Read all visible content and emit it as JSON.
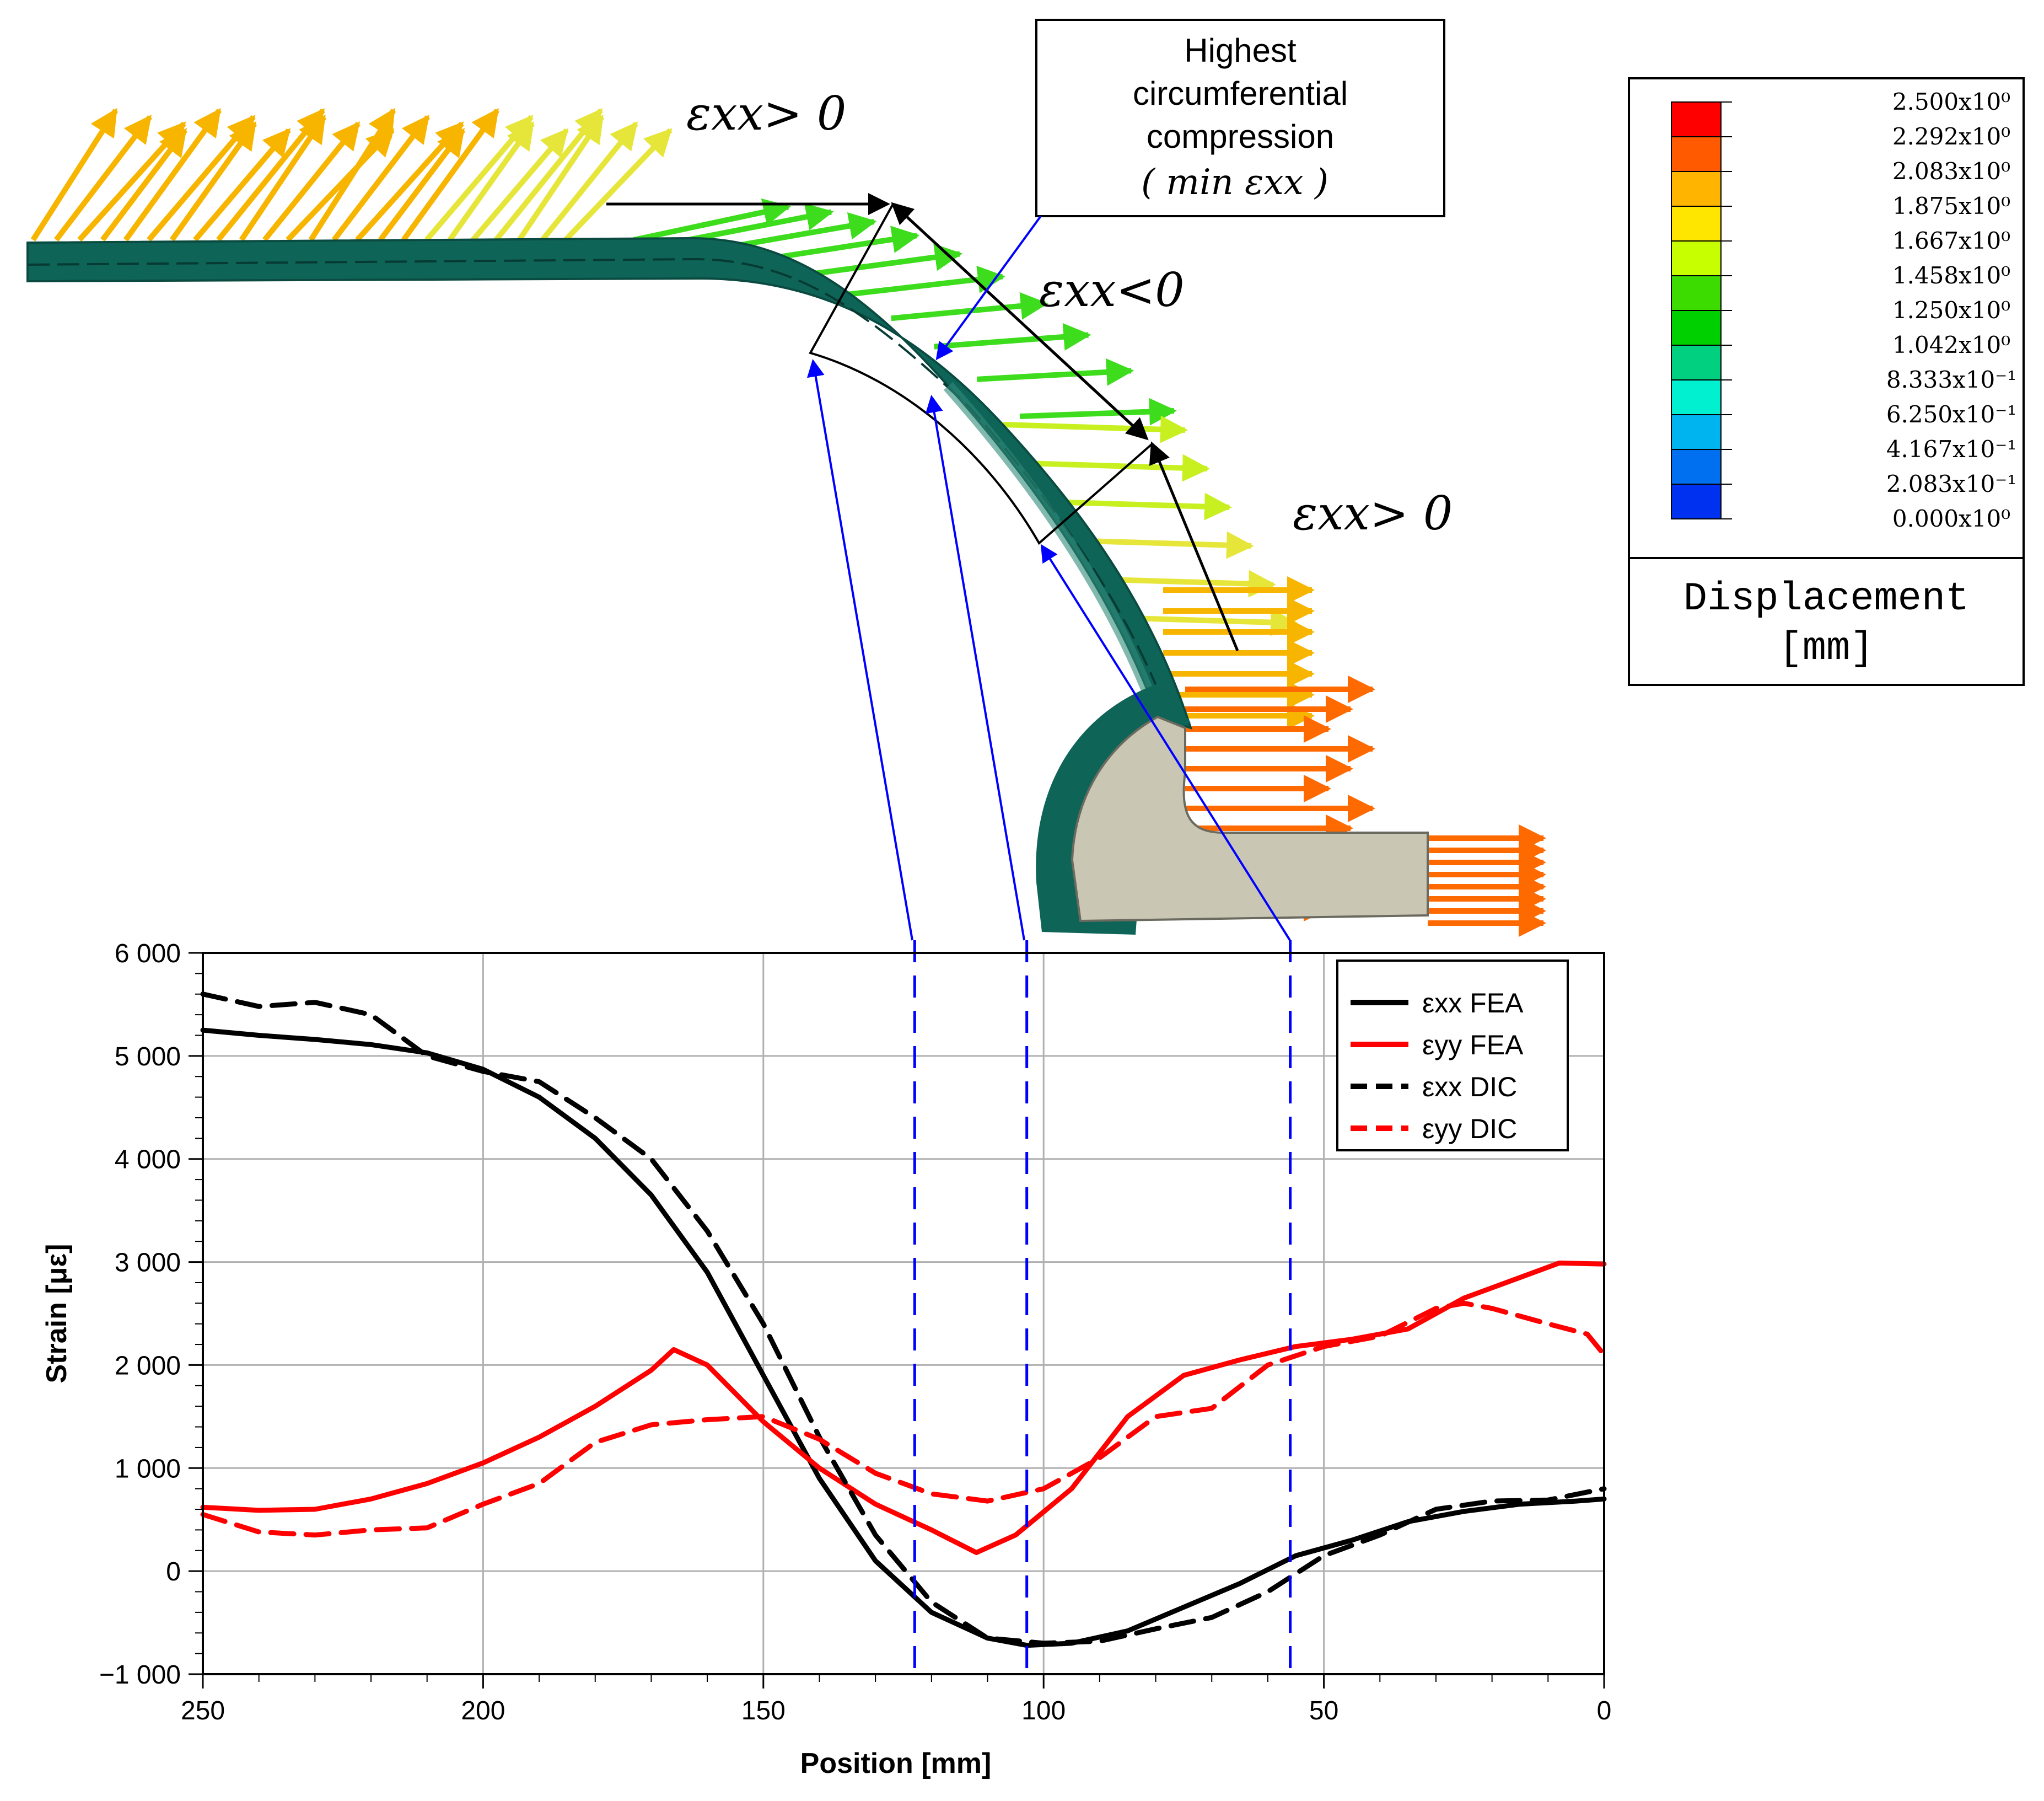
{
  "annotations": {
    "eps_pos_top": "εxx> 0",
    "eps_neg": "εxx<0",
    "eps_pos_right": "εxx> 0",
    "callout_lines": [
      "Highest",
      "circumferential",
      "compression",
      "( min  εxx )"
    ]
  },
  "legend_colorbar": {
    "values": [
      "2.500x10⁰",
      "2.292x10⁰",
      "2.083x10⁰",
      "1.875x10⁰",
      "1.667x10⁰",
      "1.458x10⁰",
      "1.250x10⁰",
      "1.042x10⁰",
      "8.333x10⁻¹",
      "6.250x10⁻¹",
      "4.167x10⁻¹",
      "2.083x10⁻¹",
      "0.000x10⁰"
    ],
    "colors": [
      "#ff0000",
      "#ff5a00",
      "#ffb400",
      "#ffe600",
      "#c8ff00",
      "#3cdc00",
      "#00d000",
      "#00d080",
      "#00f0d0",
      "#00b4f0",
      "#0070f0",
      "#0030f0",
      "#0000f0"
    ],
    "title_lines": [
      "Displacement",
      "[mm]"
    ]
  },
  "arrow_colors": {
    "flat": "#f7b500",
    "yellow": "#e6e63a",
    "green": "#3ddc1c",
    "lime": "#c8f020",
    "orange": "#ff6a00",
    "shell": "#0f6458",
    "insert": "#c9c6b4",
    "marker": "#0000ff"
  },
  "chart_data": {
    "type": "line",
    "xlabel": "Position [mm]",
    "ylabel": "Strain [με]",
    "xlim": [
      250,
      0
    ],
    "ylim": [
      -1000,
      6000
    ],
    "x_reversed": true,
    "grid": true,
    "legend_position": "top-right",
    "x_ticks": [
      "250",
      "200",
      "150",
      "100",
      "50",
      "0"
    ],
    "y_ticks": [
      "6 000",
      "5 000",
      "4 000",
      "3 000",
      "2 000",
      "1 000",
      "0",
      "−1 000"
    ],
    "marker_positions": [
      123,
      103,
      56
    ],
    "series": [
      {
        "name": "εxx FEA",
        "color": "#000000",
        "dash": "solid",
        "x": [
          250,
          240,
          230,
          220,
          210,
          200,
          190,
          180,
          170,
          160,
          150,
          140,
          130,
          120,
          110,
          103,
          95,
          85,
          75,
          65,
          55,
          45,
          35,
          25,
          15,
          5,
          0
        ],
        "y": [
          5250,
          5200,
          5160,
          5110,
          5030,
          4870,
          4600,
          4200,
          3650,
          2900,
          1900,
          900,
          100,
          -400,
          -650,
          -720,
          -700,
          -580,
          -350,
          -120,
          150,
          300,
          480,
          580,
          650,
          680,
          700
        ]
      },
      {
        "name": "εyy FEA",
        "color": "#ff0000",
        "dash": "solid",
        "x": [
          250,
          240,
          230,
          220,
          210,
          200,
          190,
          180,
          170,
          166,
          160,
          150,
          140,
          130,
          120,
          112,
          105,
          95,
          85,
          75,
          65,
          55,
          45,
          35,
          25,
          15,
          8,
          0
        ],
        "y": [
          620,
          590,
          600,
          700,
          850,
          1050,
          1300,
          1600,
          1950,
          2150,
          2000,
          1450,
          1000,
          650,
          400,
          180,
          350,
          800,
          1500,
          1900,
          2050,
          2180,
          2250,
          2350,
          2650,
          2850,
          2990,
          2980
        ]
      },
      {
        "name": "εxx DIC",
        "color": "#000000",
        "dash": "dashed",
        "x": [
          250,
          240,
          230,
          220,
          210,
          200,
          190,
          180,
          170,
          160,
          150,
          140,
          130,
          120,
          110,
          100,
          90,
          80,
          70,
          60,
          50,
          40,
          30,
          20,
          10,
          0
        ],
        "y": [
          5600,
          5480,
          5520,
          5400,
          5000,
          4850,
          4750,
          4400,
          4000,
          3300,
          2400,
          1300,
          350,
          -300,
          -650,
          -700,
          -680,
          -560,
          -450,
          -200,
          150,
          350,
          600,
          680,
          690,
          800
        ]
      },
      {
        "name": "εyy DIC",
        "color": "#ff0000",
        "dash": "dashed",
        "x": [
          250,
          240,
          230,
          220,
          210,
          200,
          190,
          180,
          170,
          160,
          150,
          140,
          130,
          120,
          110,
          100,
          90,
          80,
          70,
          60,
          50,
          40,
          30,
          25,
          20,
          10,
          3,
          0
        ],
        "y": [
          550,
          380,
          350,
          400,
          420,
          650,
          850,
          1250,
          1420,
          1470,
          1500,
          1280,
          950,
          750,
          680,
          800,
          1100,
          1500,
          1580,
          2000,
          2180,
          2280,
          2550,
          2600,
          2550,
          2400,
          2300,
          2100
        ]
      }
    ]
  }
}
